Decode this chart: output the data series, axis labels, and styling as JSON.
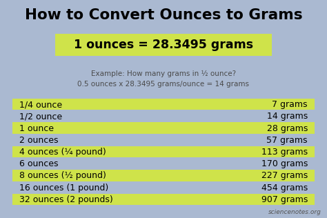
{
  "title": "How to Convert Ounces to Grams",
  "formula_text": "1 ounces = 28.3495 grams",
  "example_line1": "Example: How many grams in ½ ounce?",
  "example_line2": "0.5 ounces x 28.3495 grams/ounce = 14 grams",
  "watermark": "sciencenotes.org",
  "bg_color": "#aab9d1",
  "highlight_color": "#cfe34a",
  "table_rows": [
    {
      "left": "1/4 ounce",
      "right": "7 grams",
      "highlight": true
    },
    {
      "left": "1/2 ounce",
      "right": "14 grams",
      "highlight": false
    },
    {
      "left": "1 ounce",
      "right": "28 grams",
      "highlight": true
    },
    {
      "left": "2 ounces",
      "right": "57 grams",
      "highlight": false
    },
    {
      "left": "4 ounces (¼ pound)",
      "right": "113 grams",
      "highlight": true
    },
    {
      "left": "6 ounces",
      "right": "170 grams",
      "highlight": false
    },
    {
      "left": "8 ounces (½ pound)",
      "right": "227 grams",
      "highlight": true
    },
    {
      "left": "16 ounces (1 pound)",
      "right": "454 grams",
      "highlight": false
    },
    {
      "left": "32 ounces (2 pounds)",
      "right": "907 grams",
      "highlight": true
    }
  ],
  "title_fontsize": 15.5,
  "formula_fontsize": 12.5,
  "example_fontsize": 7.5,
  "table_fontsize": 9.0,
  "watermark_fontsize": 6.5
}
